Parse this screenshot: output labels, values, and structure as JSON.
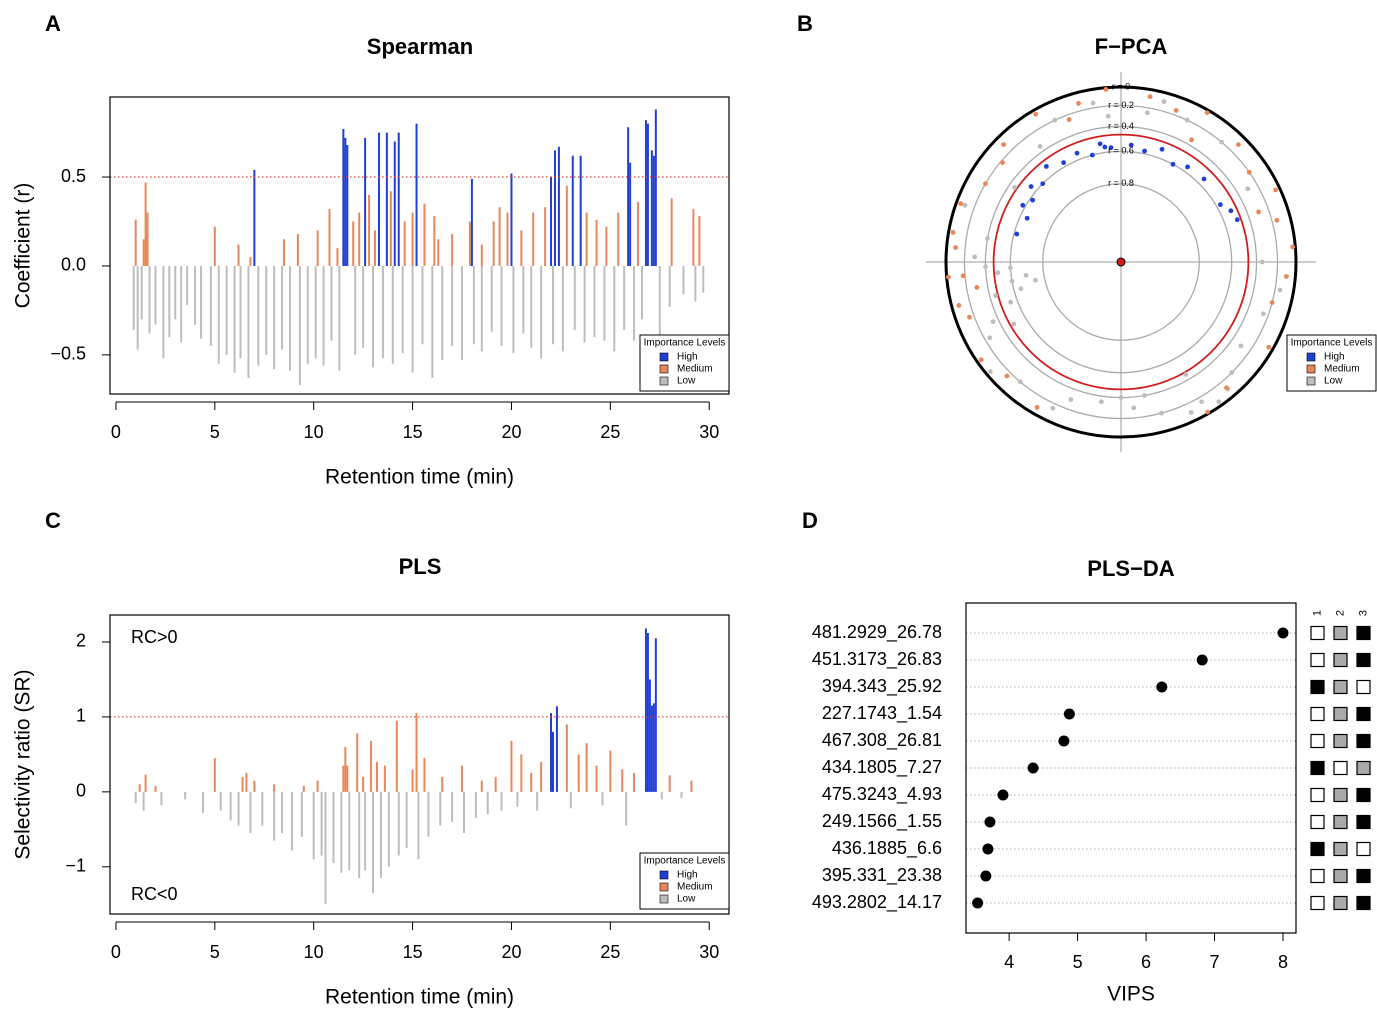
{
  "chart_data": [
    {
      "type": "spike",
      "panel_label": "A",
      "title": "Spearman",
      "x_label": "Retention time (min)",
      "y_label": "Coefficient (r)",
      "xlim": [
        -0.3,
        31
      ],
      "xticks": [
        0,
        5,
        10,
        15,
        20,
        25,
        30
      ],
      "ylim": [
        -0.72,
        0.95
      ],
      "yticks": [
        {
          "value": -0.5,
          "label": "−0.5"
        },
        {
          "value": 0,
          "label": "0.0"
        },
        0.5
      ],
      "threshold": 0.5,
      "threshold_color": "#e0403a",
      "legend_title": "Importance Levels",
      "series": [
        {
          "name": "High",
          "color": "#1f3fd6",
          "x": [
            7.0,
            11.5,
            11.6,
            11.7,
            12.6,
            13.3,
            13.7,
            14.1,
            14.3,
            15.2,
            18.0,
            20.0,
            22.0,
            22.2,
            22.4,
            23.1,
            23.5,
            25.9,
            26.0,
            26.8,
            26.9,
            27.1,
            27.2,
            27.3
          ],
          "values": [
            0.54,
            0.77,
            0.72,
            0.68,
            0.72,
            0.75,
            0.75,
            0.7,
            0.75,
            0.8,
            0.49,
            0.52,
            0.5,
            0.65,
            0.67,
            0.62,
            0.62,
            0.78,
            0.58,
            0.82,
            0.8,
            0.65,
            0.62,
            0.88
          ]
        },
        {
          "name": "Medium",
          "color": "#e8875a",
          "x": [
            1.0,
            1.4,
            1.5,
            1.6,
            5.0,
            6.2,
            6.8,
            8.5,
            9.2,
            10.2,
            10.8,
            11.2,
            12.0,
            12.3,
            12.8,
            13.1,
            13.9,
            14.6,
            15.0,
            15.6,
            16.1,
            16.3,
            17.0,
            17.9,
            18.5,
            19.1,
            19.4,
            19.8,
            20.5,
            21.1,
            21.7,
            22.8,
            23.8,
            24.3,
            24.8,
            25.4,
            26.4,
            28.1,
            29.2,
            29.5
          ],
          "values": [
            0.26,
            0.15,
            0.47,
            0.3,
            0.22,
            0.12,
            0.05,
            0.15,
            0.18,
            0.2,
            0.32,
            0.1,
            0.25,
            0.3,
            0.4,
            0.2,
            0.42,
            0.25,
            0.3,
            0.35,
            0.28,
            0.15,
            0.18,
            0.25,
            0.12,
            0.25,
            0.33,
            0.3,
            0.2,
            0.3,
            0.33,
            0.45,
            0.3,
            0.26,
            0.22,
            0.3,
            0.36,
            0.38,
            0.32,
            0.28
          ]
        },
        {
          "name": "Low",
          "color": "#bdbdbd",
          "x": [
            0.9,
            1.1,
            1.3,
            1.7,
            2.0,
            2.4,
            2.7,
            3.0,
            3.3,
            3.6,
            4.0,
            4.3,
            4.8,
            5.2,
            5.6,
            6.0,
            6.3,
            6.7,
            7.2,
            7.6,
            8.0,
            8.4,
            8.8,
            9.3,
            9.7,
            10.1,
            10.5,
            10.9,
            11.3,
            12.1,
            12.5,
            13.0,
            13.5,
            14.0,
            14.5,
            15.0,
            15.5,
            16.0,
            16.5,
            17.0,
            17.5,
            18.1,
            18.5,
            19.0,
            19.5,
            20.1,
            20.6,
            21.0,
            21.5,
            22.1,
            22.6,
            23.2,
            23.7,
            24.2,
            24.7,
            25.2,
            25.7,
            26.2,
            26.6,
            27.5,
            28.0,
            28.7,
            29.3,
            29.7
          ],
          "values": [
            -0.36,
            -0.47,
            -0.3,
            -0.38,
            -0.33,
            -0.52,
            -0.4,
            -0.3,
            -0.43,
            -0.22,
            -0.33,
            -0.41,
            -0.45,
            -0.55,
            -0.5,
            -0.6,
            -0.52,
            -0.63,
            -0.56,
            -0.5,
            -0.58,
            -0.47,
            -0.59,
            -0.67,
            -0.55,
            -0.52,
            -0.56,
            -0.42,
            -0.59,
            -0.5,
            -0.46,
            -0.57,
            -0.52,
            -0.55,
            -0.49,
            -0.6,
            -0.44,
            -0.63,
            -0.53,
            -0.45,
            -0.53,
            -0.44,
            -0.48,
            -0.37,
            -0.45,
            -0.49,
            -0.38,
            -0.46,
            -0.52,
            -0.44,
            -0.48,
            -0.36,
            -0.43,
            -0.4,
            -0.42,
            -0.48,
            -0.36,
            -0.42,
            -0.3,
            -0.53,
            -0.23,
            -0.16,
            -0.2,
            -0.15
          ]
        }
      ]
    },
    {
      "type": "polar",
      "panel_label": "B",
      "title": "F−PCA",
      "rings": [
        {
          "value": 0,
          "label": "r = 0"
        },
        {
          "value": 0.2,
          "label": "r = 0.2"
        },
        {
          "value": 0.4,
          "label": "r = 0.4"
        },
        {
          "value": 0.6,
          "label": "r = 0.6"
        },
        {
          "value": 0.8,
          "label": "r = 0.8"
        }
      ],
      "threshold": 0.47,
      "threshold_color": "#d01c1c",
      "legend_title": "Importance Levels",
      "series": [
        {
          "name": "High",
          "color": "#1f3fd6",
          "r": [
            0.62,
            0.58,
            0.55,
            0.6,
            0.52,
            0.57,
            0.55,
            0.6,
            0.53,
            0.57,
            0.55,
            0.58,
            0.53,
            0.6,
            0.56,
            0.55,
            0.57,
            0.52,
            0.5,
            0.62,
            0.65,
            0.56
          ],
          "theta": [
            165,
            150,
            140,
            135,
            128,
            120,
            112,
            105,
            100,
            95,
            85,
            78,
            70,
            62,
            55,
            45,
            30,
            25,
            20,
            145,
            155,
            98
          ]
        },
        {
          "name": "Medium",
          "color": "#e8875a",
          "r": [
            0.05,
            0.1,
            0.02,
            0.08,
            0.15,
            0.05,
            0.2,
            0.1,
            0.05,
            0.12,
            0.02,
            0.08,
            0.15,
            0.03,
            0.1,
            0.2,
            0.05,
            0.15,
            0.03,
            0.1,
            0.2,
            0.05,
            0.12,
            0.02,
            0.08,
            0.15,
            0.05,
            0.3,
            0.25,
            0.35,
            0.3,
            0.18,
            0.22
          ],
          "theta": [
            170,
            175,
            185,
            195,
            200,
            160,
            150,
            135,
            120,
            105,
            95,
            80,
            70,
            60,
            45,
            35,
            25,
            15,
            5,
            355,
            345,
            330,
            310,
            300,
            240,
            225,
            215,
            190,
            110,
            60,
            20,
            185,
            140
          ]
        },
        {
          "name": "Low",
          "color": "#bdbdbd",
          "r": [
            0.5,
            0.6,
            0.7,
            0.45,
            0.55,
            0.4,
            0.65,
            0.35,
            0.3,
            0.25,
            0.2,
            0.15,
            0.3,
            0.35,
            0.4,
            0.3,
            0.2,
            0.1,
            0.15,
            0.05,
            0.1,
            0.2,
            0.3,
            0.25,
            0.15,
            0.35,
            0.3,
            0.2,
            0.25,
            0.3,
            0.15,
            0.2,
            0.35,
            0.45,
            0.1,
            0.4,
            0.6,
            0.75,
            0.5,
            0.45,
            0.4,
            0.05,
            0.1,
            0.2
          ],
          "theta": [
            185,
            190,
            188,
            195,
            200,
            182,
            195,
            205,
            178,
            210,
            230,
            245,
            250,
            262,
            270,
            275,
            285,
            295,
            300,
            305,
            310,
            315,
            325,
            340,
            350,
            0,
            30,
            50,
            80,
            95,
            100,
            115,
            125,
            145,
            160,
            170,
            183,
            192,
            210,
            300,
            280,
            220,
            75,
            65
          ]
        }
      ]
    },
    {
      "type": "spike",
      "panel_label": "C",
      "title": "PLS",
      "x_label": "Retention time (min)",
      "y_label": "Selectivity ratio (SR)",
      "xlim": [
        -0.3,
        31
      ],
      "xticks": [
        0,
        5,
        10,
        15,
        20,
        25,
        30
      ],
      "ylim": [
        -1.63,
        2.36
      ],
      "yticks": [
        {
          "value": -1,
          "label": "−1"
        },
        0,
        1,
        2
      ],
      "threshold": 1,
      "threshold_color": "#e0403a",
      "annotations": [
        "RC>0",
        "RC<0"
      ],
      "legend_title": "Importance Levels",
      "series": [
        {
          "name": "High",
          "color": "#1f3fd6",
          "x": [
            22.0,
            22.1,
            22.3,
            26.8,
            26.9,
            27.0,
            27.1,
            27.2,
            27.3
          ],
          "values": [
            1.05,
            0.8,
            1.14,
            2.18,
            2.12,
            1.5,
            1.15,
            1.18,
            2.05
          ]
        },
        {
          "name": "Medium",
          "color": "#e8875a",
          "x": [
            1.2,
            1.5,
            2.0,
            5.0,
            6.4,
            6.6,
            7.0,
            8.0,
            9.5,
            10.2,
            11.5,
            11.6,
            11.7,
            12.2,
            12.5,
            12.9,
            13.2,
            13.6,
            14.2,
            15.0,
            15.2,
            15.6,
            16.5,
            17.5,
            18.5,
            19.2,
            20.0,
            20.5,
            21.0,
            21.5,
            22.8,
            23.4,
            23.8,
            24.3,
            25.0,
            25.6,
            26.2,
            28.0,
            29.1
          ],
          "values": [
            0.1,
            0.23,
            0.08,
            0.45,
            0.2,
            0.25,
            0.15,
            0.1,
            0.08,
            0.15,
            0.35,
            0.6,
            0.35,
            0.78,
            0.2,
            0.68,
            0.4,
            0.35,
            0.95,
            0.3,
            1.05,
            0.45,
            0.2,
            0.35,
            0.15,
            0.2,
            0.68,
            0.5,
            0.25,
            0.4,
            0.9,
            0.5,
            0.65,
            0.35,
            0.55,
            0.3,
            0.25,
            0.22,
            0.15
          ]
        },
        {
          "name": "Low",
          "color": "#bdbdbd",
          "x": [
            1.0,
            1.4,
            2.3,
            3.5,
            4.4,
            5.3,
            5.8,
            6.2,
            6.8,
            7.4,
            8.0,
            8.4,
            8.9,
            9.4,
            10.0,
            10.4,
            10.6,
            11.0,
            11.4,
            11.8,
            12.3,
            12.6,
            13.0,
            13.4,
            13.8,
            14.3,
            14.7,
            15.3,
            15.8,
            16.4,
            17.0,
            17.6,
            18.2,
            18.8,
            19.5,
            20.3,
            21.3,
            23.0,
            24.6,
            25.8,
            27.6,
            28.6
          ],
          "values": [
            -0.15,
            -0.25,
            -0.18,
            -0.1,
            -0.28,
            -0.25,
            -0.38,
            -0.45,
            -0.55,
            -0.45,
            -0.65,
            -0.55,
            -0.78,
            -0.6,
            -0.9,
            -0.85,
            -1.5,
            -0.95,
            -1.08,
            -1.05,
            -1.15,
            -1.05,
            -1.35,
            -1.15,
            -1.0,
            -0.85,
            -0.75,
            -0.9,
            -0.6,
            -0.45,
            -0.4,
            -0.55,
            -0.35,
            -0.3,
            -0.25,
            -0.2,
            -0.25,
            -0.22,
            -0.18,
            -0.45,
            -0.1,
            -0.08
          ]
        }
      ]
    },
    {
      "type": "dotplot",
      "panel_label": "D",
      "title": "PLS−DA",
      "x_label": "VIPS",
      "xlim": [
        3.37,
        8.19
      ],
      "xticks": [
        4,
        5,
        6,
        7,
        8
      ],
      "categories": [
        "481.2929_26.78",
        "451.3173_26.83",
        "394.343_25.92",
        "227.1743_1.54",
        "467.308_26.81",
        "434.1805_7.27",
        "475.3243_4.93",
        "249.1566_1.55",
        "436.1885_6.6",
        "395.331_23.38",
        "493.2802_14.17"
      ],
      "label_colors": [
        "#1f3fd6",
        "#1f3fd6",
        "#aaaaaa",
        "#1f3fd6",
        "#1f3fd6",
        "#aaaaaa",
        "#1f3fd6",
        "#1f3fd6",
        "#aaaaaa",
        "#1f3fd6",
        "#1f3fd6"
      ],
      "values": [
        8.0,
        6.82,
        6.23,
        4.88,
        4.8,
        4.35,
        3.91,
        3.72,
        3.69,
        3.66,
        3.54
      ],
      "heatmap": {
        "columns": [
          "1",
          "2",
          "3"
        ],
        "colors": [
          "#ffffff",
          "#aaaaaa",
          "#000000"
        ],
        "cells": [
          [
            0,
            1,
            2
          ],
          [
            0,
            1,
            2
          ],
          [
            2,
            1,
            0
          ],
          [
            0,
            1,
            2
          ],
          [
            0,
            1,
            2
          ],
          [
            2,
            0,
            1
          ],
          [
            0,
            1,
            2
          ],
          [
            0,
            1,
            2
          ],
          [
            2,
            1,
            0
          ],
          [
            0,
            1,
            2
          ],
          [
            0,
            1,
            2
          ]
        ]
      }
    }
  ]
}
